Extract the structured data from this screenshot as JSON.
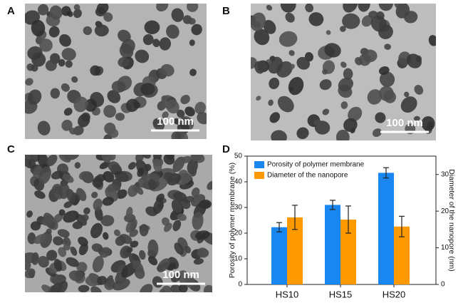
{
  "panels": [
    {
      "label": "A",
      "scale_bar": "100 nm"
    },
    {
      "label": "B",
      "scale_bar": "100 nm"
    },
    {
      "label": "C",
      "scale_bar": "100 nm"
    },
    {
      "label": "D"
    }
  ],
  "chart_data": {
    "type": "bar",
    "categories": [
      "HS10",
      "HS15",
      "HS20"
    ],
    "y_label": "Porosity of polymer membrane (%)",
    "y2_label": "Diameter of the nanopore (nm)",
    "ylim": [
      0,
      50
    ],
    "yticks": [
      0,
      10,
      20,
      30,
      40,
      50
    ],
    "y2lim": [
      0,
      35
    ],
    "y2ticks": [
      0,
      10,
      20,
      30
    ],
    "legend": "upper-left",
    "series": [
      {
        "name": "Porosity of polymer membrane",
        "color": "#1a86f0",
        "values": [
          22.3,
          31.0,
          43.5
        ],
        "errors": [
          1.8,
          1.8,
          2.0
        ]
      },
      {
        "name": "Diameter of the nanopore",
        "color": "#ff9900",
        "axis": "y2",
        "values": [
          18.3,
          17.7,
          15.8
        ],
        "errors": [
          3.3,
          3.7,
          2.8
        ]
      }
    ]
  }
}
